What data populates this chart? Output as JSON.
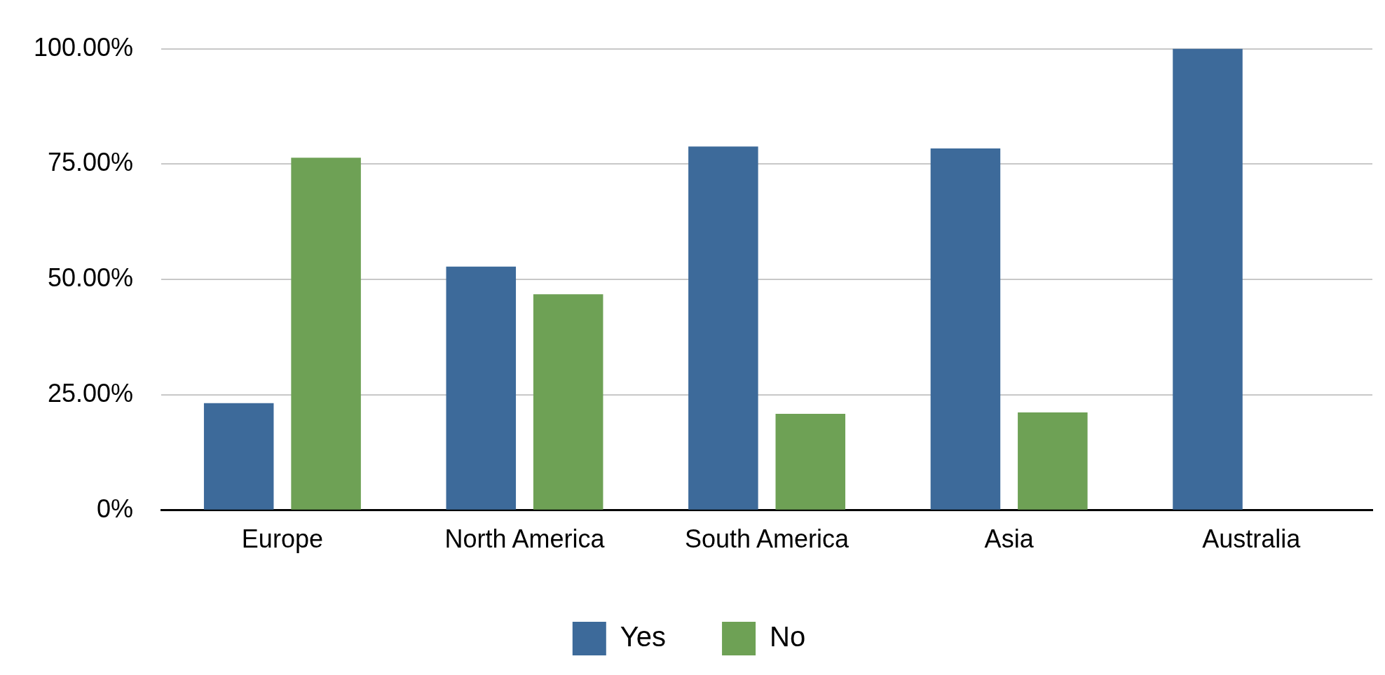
{
  "chart_data": {
    "type": "bar",
    "categories": [
      "Europe",
      "North America",
      "South America",
      "Asia",
      "Australia"
    ],
    "series": [
      {
        "name": "Yes",
        "color": "#3d6a9a",
        "values": [
          23.2,
          52.8,
          78.8,
          78.4,
          100
        ]
      },
      {
        "name": "No",
        "color": "#6ea155",
        "values": [
          76.4,
          46.8,
          20.9,
          21.2,
          0
        ]
      }
    ],
    "ylim": [
      0,
      100
    ],
    "yticks": [
      {
        "value": 0,
        "label": "0%"
      },
      {
        "value": 25,
        "label": "25.00%"
      },
      {
        "value": 50,
        "label": "50.00%"
      },
      {
        "value": 75,
        "label": "75.00%"
      },
      {
        "value": 100,
        "label": "100.00%"
      }
    ],
    "grid": "y",
    "legend": "bottom"
  }
}
